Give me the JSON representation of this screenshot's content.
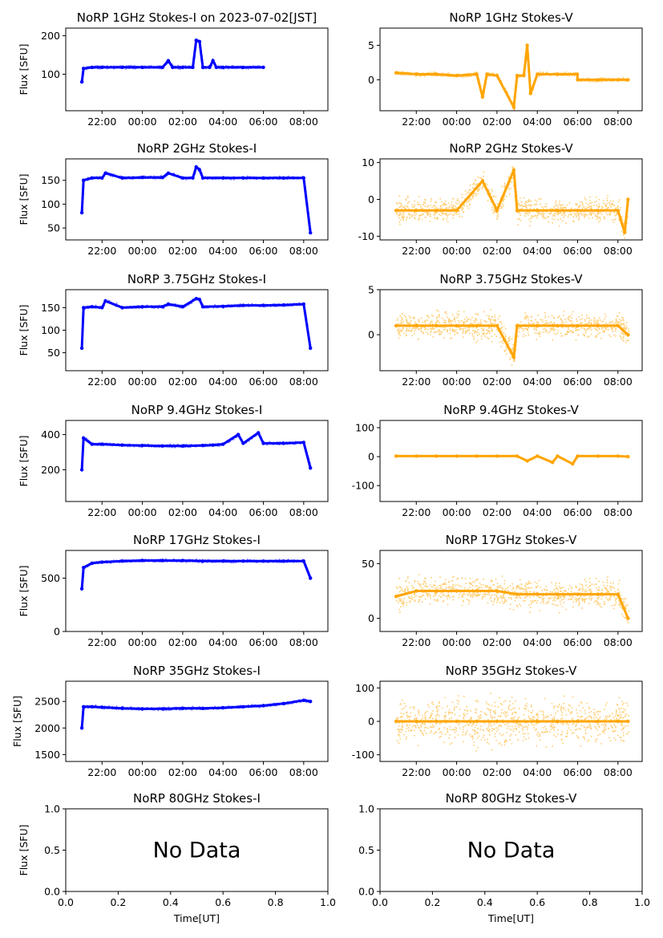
{
  "chart_data": [
    {
      "type": "scatter",
      "title": "NoRP 1GHz Stokes-I on 2023-07-02[JST]",
      "xlabel": "",
      "ylabel": "Flux [SFU]",
      "color": "#0000ff",
      "series": [
        {
          "x": [
            "21:00",
            "21:05",
            "21:30",
            "22:00",
            "23:00",
            "00:00",
            "01:00",
            "01:17",
            "01:30",
            "02:00",
            "02:30",
            "02:40",
            "02:50",
            "03:00",
            "03:20",
            "03:30",
            "03:40",
            "04:00",
            "05:00",
            "06:00"
          ],
          "y": [
            80,
            115,
            118,
            118,
            118,
            118,
            118,
            135,
            118,
            118,
            118,
            188,
            185,
            118,
            118,
            135,
            118,
            118,
            118,
            118
          ]
        }
      ],
      "xticks": [
        "22:00",
        "00:00",
        "02:00",
        "04:00",
        "06:00",
        "08:00"
      ],
      "yticks": [
        100,
        200
      ],
      "ylim": [
        5,
        220
      ]
    },
    {
      "type": "scatter",
      "title": "NoRP 1GHz Stokes-V",
      "xlabel": "",
      "ylabel": "",
      "color": "#ffa500",
      "series": [
        {
          "x": [
            "21:00",
            "22:00",
            "23:00",
            "00:00",
            "01:00",
            "01:17",
            "01:30",
            "02:00",
            "02:50",
            "03:00",
            "03:20",
            "03:30",
            "03:40",
            "04:00",
            "05:00",
            "05:59",
            "06:00",
            "07:00",
            "08:00",
            "08:30"
          ],
          "y": [
            1.0,
            0.8,
            0.8,
            0.6,
            0.8,
            -2.5,
            0.8,
            0.6,
            -4.0,
            0.6,
            0.6,
            5.0,
            -2.0,
            0.8,
            0.8,
            0.8,
            0,
            0,
            0,
            0
          ]
        }
      ],
      "xticks": [
        "22:00",
        "00:00",
        "02:00",
        "04:00",
        "06:00",
        "08:00"
      ],
      "yticks": [
        0,
        5
      ],
      "ylim": [
        -4.5,
        7.5
      ]
    },
    {
      "type": "scatter",
      "title": "NoRP 2GHz Stokes-I",
      "xlabel": "",
      "ylabel": "Flux [SFU]",
      "color": "#0000ff",
      "series": [
        {
          "x": [
            "21:00",
            "21:05",
            "21:30",
            "22:00",
            "22:10",
            "23:00",
            "00:00",
            "01:00",
            "01:17",
            "02:00",
            "02:30",
            "02:40",
            "02:50",
            "03:00",
            "04:00",
            "05:00",
            "06:00",
            "07:00",
            "08:00",
            "08:20"
          ],
          "y": [
            82,
            150,
            155,
            155,
            165,
            155,
            156,
            156,
            165,
            155,
            155,
            178,
            172,
            155,
            155,
            155,
            155,
            155,
            155,
            40
          ]
        }
      ],
      "xticks": [
        "22:00",
        "00:00",
        "02:00",
        "04:00",
        "06:00",
        "08:00"
      ],
      "yticks": [
        50,
        100,
        150
      ],
      "ylim": [
        25,
        195
      ]
    },
    {
      "type": "scatter",
      "title": "NoRP 2GHz Stokes-V",
      "xlabel": "",
      "ylabel": "",
      "color": "#ffa500",
      "series": [
        {
          "x": [
            "21:00",
            "22:00",
            "23:00",
            "00:00",
            "01:17",
            "02:00",
            "02:50",
            "03:00",
            "04:00",
            "05:00",
            "06:00",
            "07:00",
            "08:00",
            "08:20",
            "08:30"
          ],
          "y": [
            -3,
            -3,
            -3,
            -3,
            5,
            -3,
            8,
            -3,
            -3,
            -3,
            -3,
            -3,
            -3,
            -9,
            0
          ]
        }
      ],
      "xticks": [
        "22:00",
        "00:00",
        "02:00",
        "04:00",
        "06:00",
        "08:00"
      ],
      "yticks": [
        -10,
        0,
        10
      ],
      "ylim": [
        -11,
        11
      ]
    },
    {
      "type": "scatter",
      "title": "NoRP 3.75GHz Stokes-I",
      "xlabel": "",
      "ylabel": "Flux [SFU]",
      "color": "#0000ff",
      "series": [
        {
          "x": [
            "21:00",
            "21:05",
            "21:30",
            "22:00",
            "22:10",
            "23:00",
            "00:00",
            "01:00",
            "01:17",
            "02:00",
            "02:40",
            "02:50",
            "03:00",
            "04:00",
            "05:00",
            "06:00",
            "07:00",
            "08:00",
            "08:20"
          ],
          "y": [
            60,
            150,
            152,
            150,
            165,
            150,
            152,
            152,
            158,
            152,
            170,
            168,
            152,
            153,
            155,
            155,
            156,
            158,
            60
          ]
        }
      ],
      "xticks": [
        "22:00",
        "00:00",
        "02:00",
        "04:00",
        "06:00",
        "08:00"
      ],
      "yticks": [
        50,
        100,
        150
      ],
      "ylim": [
        10,
        190
      ]
    },
    {
      "type": "scatter",
      "title": "NoRP 3.75GHz Stokes-V",
      "xlabel": "",
      "ylabel": "",
      "color": "#ffa500",
      "series": [
        {
          "x": [
            "21:00",
            "22:00",
            "23:00",
            "00:00",
            "01:00",
            "02:00",
            "02:50",
            "03:00",
            "04:00",
            "05:00",
            "06:00",
            "07:00",
            "08:00",
            "08:30"
          ],
          "y": [
            1,
            1,
            1,
            1,
            1,
            1,
            -2.5,
            1,
            1,
            1,
            1,
            1,
            1,
            0
          ]
        }
      ],
      "xticks": [
        "22:00",
        "00:00",
        "02:00",
        "04:00",
        "06:00",
        "08:00"
      ],
      "yticks": [
        0,
        5
      ],
      "ylim": [
        -4,
        5
      ]
    },
    {
      "type": "scatter",
      "title": "NoRP 9.4GHz Stokes-I",
      "xlabel": "",
      "ylabel": "Flux [SFU]",
      "color": "#0000ff",
      "series": [
        {
          "x": [
            "21:00",
            "21:05",
            "21:30",
            "22:00",
            "23:00",
            "00:00",
            "01:00",
            "02:00",
            "03:00",
            "03:30",
            "04:00",
            "04:45",
            "05:00",
            "05:45",
            "06:00",
            "07:00",
            "08:00",
            "08:20"
          ],
          "y": [
            200,
            380,
            345,
            345,
            340,
            338,
            335,
            335,
            338,
            340,
            345,
            400,
            350,
            410,
            350,
            350,
            355,
            210
          ]
        }
      ],
      "xticks": [
        "22:00",
        "00:00",
        "02:00",
        "04:00",
        "06:00",
        "08:00"
      ],
      "yticks": [
        200,
        400
      ],
      "ylim": [
        20,
        480
      ]
    },
    {
      "type": "scatter",
      "title": "NoRP 9.4GHz Stokes-V",
      "xlabel": "",
      "ylabel": "",
      "color": "#ffa500",
      "series": [
        {
          "x": [
            "21:00",
            "22:00",
            "23:00",
            "00:00",
            "01:00",
            "02:00",
            "03:00",
            "03:30",
            "04:00",
            "04:45",
            "05:00",
            "05:45",
            "06:00",
            "07:00",
            "08:00",
            "08:30"
          ],
          "y": [
            2,
            2,
            2,
            2,
            2,
            2,
            2,
            -15,
            2,
            -20,
            2,
            -25,
            2,
            2,
            2,
            0
          ]
        }
      ],
      "xticks": [
        "22:00",
        "00:00",
        "02:00",
        "04:00",
        "06:00",
        "08:00"
      ],
      "yticks": [
        -100,
        0,
        100
      ],
      "ylim": [
        -155,
        125
      ]
    },
    {
      "type": "scatter",
      "title": "NoRP 17GHz Stokes-I",
      "xlabel": "",
      "ylabel": "Flux [SFU]",
      "color": "#0000ff",
      "series": [
        {
          "x": [
            "21:00",
            "21:05",
            "21:30",
            "22:00",
            "23:00",
            "00:00",
            "01:00",
            "02:00",
            "03:00",
            "04:00",
            "05:00",
            "06:00",
            "07:00",
            "08:00",
            "08:20"
          ],
          "y": [
            400,
            600,
            640,
            650,
            660,
            665,
            665,
            665,
            660,
            660,
            660,
            660,
            660,
            660,
            500
          ]
        }
      ],
      "xticks": [
        "22:00",
        "00:00",
        "02:00",
        "04:00",
        "06:00",
        "08:00"
      ],
      "yticks": [
        0,
        500
      ],
      "ylim": [
        0,
        760
      ]
    },
    {
      "type": "scatter",
      "title": "NoRP 17GHz Stokes-V",
      "xlabel": "",
      "ylabel": "",
      "color": "#ffa500",
      "series": [
        {
          "x": [
            "21:00",
            "22:00",
            "23:00",
            "00:00",
            "01:00",
            "02:00",
            "03:00",
            "04:00",
            "05:00",
            "06:00",
            "07:00",
            "08:00",
            "08:30"
          ],
          "y": [
            20,
            25,
            25,
            25,
            25,
            25,
            22,
            22,
            22,
            22,
            22,
            22,
            0
          ]
        }
      ],
      "xticks": [
        "22:00",
        "00:00",
        "02:00",
        "04:00",
        "06:00",
        "08:00"
      ],
      "yticks": [
        0,
        50
      ],
      "ylim": [
        -12,
        62
      ]
    },
    {
      "type": "scatter",
      "title": "NoRP 35GHz Stokes-I",
      "xlabel": "",
      "ylabel": "Flux [SFU]",
      "color": "#0000ff",
      "series": [
        {
          "x": [
            "21:00",
            "21:05",
            "21:30",
            "22:00",
            "23:00",
            "00:00",
            "01:00",
            "02:00",
            "03:00",
            "04:00",
            "05:00",
            "06:00",
            "07:00",
            "08:00",
            "08:20"
          ],
          "y": [
            2000,
            2400,
            2400,
            2390,
            2370,
            2360,
            2360,
            2370,
            2370,
            2380,
            2400,
            2420,
            2460,
            2520,
            2500
          ]
        }
      ],
      "xticks": [
        "22:00",
        "00:00",
        "02:00",
        "04:00",
        "06:00",
        "08:00"
      ],
      "yticks": [
        1500,
        2000,
        2500
      ],
      "ylim": [
        1370,
        2880
      ]
    },
    {
      "type": "scatter",
      "title": "NoRP 35GHz Stokes-V",
      "xlabel": "",
      "ylabel": "",
      "color": "#ffa500",
      "series": [
        {
          "x": [
            "21:00",
            "22:00",
            "23:00",
            "00:00",
            "01:00",
            "02:00",
            "03:00",
            "04:00",
            "05:00",
            "06:00",
            "07:00",
            "08:00",
            "08:30"
          ],
          "y": [
            0,
            0,
            0,
            0,
            0,
            0,
            0,
            0,
            0,
            0,
            0,
            0,
            0
          ]
        }
      ],
      "xticks": [
        "22:00",
        "00:00",
        "02:00",
        "04:00",
        "06:00",
        "08:00"
      ],
      "yticks": [
        -100,
        0,
        100
      ],
      "ylim": [
        -120,
        120
      ]
    },
    {
      "type": "scatter",
      "title": "NoRP 80GHz Stokes-I",
      "xlabel": "Time[UT]",
      "ylabel": "Flux [SFU]",
      "annotation": "No Data",
      "xticks": [
        "0.0",
        "0.2",
        "0.4",
        "0.6",
        "0.8",
        "1.0"
      ],
      "yticks": [
        "0.0",
        "0.5",
        "1.0"
      ],
      "xlim": [
        0,
        1
      ],
      "ylim": [
        0,
        1
      ]
    },
    {
      "type": "scatter",
      "title": "NoRP 80GHz Stokes-V",
      "xlabel": "Time[UT]",
      "ylabel": "",
      "annotation": "No Data",
      "xticks": [
        "0.0",
        "0.2",
        "0.4",
        "0.6",
        "0.8",
        "1.0"
      ],
      "yticks": [
        "0.0",
        "0.5",
        "1.0"
      ],
      "xlim": [
        0,
        1
      ],
      "ylim": [
        0,
        1
      ]
    }
  ]
}
